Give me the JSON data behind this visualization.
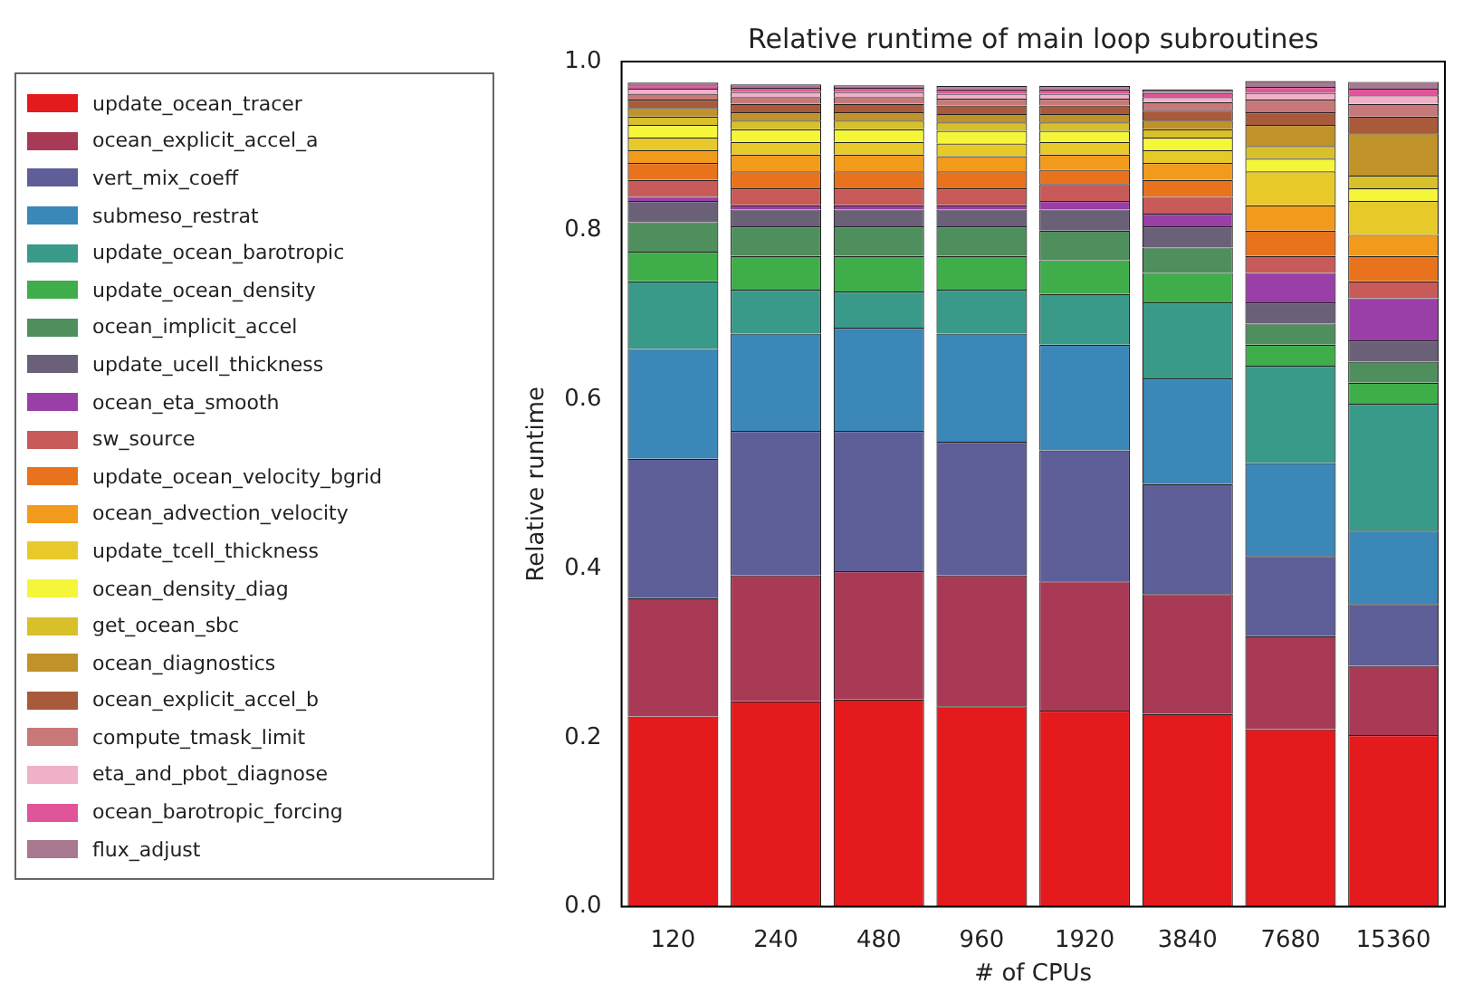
{
  "chart_data": {
    "type": "bar",
    "title": "Relative runtime of main loop subroutines",
    "xlabel": "# of CPUs",
    "ylabel": "Relative runtime",
    "categories": [
      "120",
      "240",
      "480",
      "960",
      "1920",
      "3840",
      "7680",
      "15360"
    ],
    "stacked": true,
    "ylim": [
      0,
      1
    ],
    "yticks": [
      {
        "value": 0,
        "label": "0.0"
      },
      0.2,
      0.4,
      0.6,
      0.8,
      {
        "value": 1,
        "label": "1.0"
      }
    ],
    "grid": false,
    "legend": "left",
    "series": [
      {
        "name": "update_ocean_tracer",
        "color": "#e41a1c",
        "values": [
          0.225,
          0.243,
          0.245,
          0.237,
          0.232,
          0.228,
          0.21,
          0.203
        ]
      },
      {
        "name": "ocean_explicit_accel_a",
        "color": "#a83a55",
        "values": [
          0.14,
          0.149,
          0.152,
          0.155,
          0.153,
          0.142,
          0.11,
          0.082
        ]
      },
      {
        "name": "vert_mix_coeff",
        "color": "#5e5e99",
        "values": [
          0.165,
          0.171,
          0.166,
          0.158,
          0.155,
          0.13,
          0.095,
          0.073
        ]
      },
      {
        "name": "submeso_restrat",
        "color": "#3a87b8",
        "values": [
          0.13,
          0.115,
          0.122,
          0.128,
          0.125,
          0.125,
          0.11,
          0.087
        ]
      },
      {
        "name": "update_ocean_barotropic",
        "color": "#3a9a8a",
        "values": [
          0.08,
          0.052,
          0.043,
          0.052,
          0.06,
          0.09,
          0.115,
          0.15
        ]
      },
      {
        "name": "update_ocean_density",
        "color": "#3fae4a",
        "values": [
          0.035,
          0.04,
          0.042,
          0.04,
          0.04,
          0.035,
          0.025,
          0.025
        ]
      },
      {
        "name": "ocean_implicit_accel",
        "color": "#4f8f5e",
        "values": [
          0.035,
          0.035,
          0.035,
          0.035,
          0.035,
          0.03,
          0.025,
          0.025
        ]
      },
      {
        "name": "update_ucell_thickness",
        "color": "#6a6078",
        "values": [
          0.025,
          0.02,
          0.02,
          0.02,
          0.025,
          0.025,
          0.025,
          0.025
        ]
      },
      {
        "name": "ocean_eta_smooth",
        "color": "#9a3fa8",
        "values": [
          0.005,
          0.005,
          0.005,
          0.005,
          0.01,
          0.015,
          0.035,
          0.05
        ]
      },
      {
        "name": "sw_source",
        "color": "#c85a5a",
        "values": [
          0.02,
          0.02,
          0.02,
          0.02,
          0.02,
          0.02,
          0.02,
          0.02
        ]
      },
      {
        "name": "update_ocean_velocity_bgrid",
        "color": "#e8731c",
        "values": [
          0.02,
          0.02,
          0.02,
          0.02,
          0.017,
          0.02,
          0.03,
          0.03
        ]
      },
      {
        "name": "ocean_advection_velocity",
        "color": "#f29a1c",
        "values": [
          0.015,
          0.02,
          0.02,
          0.018,
          0.018,
          0.02,
          0.03,
          0.025
        ]
      },
      {
        "name": "update_tcell_thickness",
        "color": "#e8c92a",
        "values": [
          0.015,
          0.015,
          0.015,
          0.015,
          0.015,
          0.015,
          0.04,
          0.04
        ]
      },
      {
        "name": "ocean_density_diag",
        "color": "#f5f53a",
        "values": [
          0.015,
          0.015,
          0.015,
          0.015,
          0.013,
          0.015,
          0.015,
          0.015
        ]
      },
      {
        "name": "get_ocean_sbc",
        "color": "#d8c02a",
        "values": [
          0.01,
          0.01,
          0.01,
          0.01,
          0.01,
          0.01,
          0.015,
          0.015
        ]
      },
      {
        "name": "ocean_diagnostics",
        "color": "#c0922a",
        "values": [
          0.01,
          0.01,
          0.01,
          0.01,
          0.01,
          0.01,
          0.025,
          0.05
        ]
      },
      {
        "name": "ocean_explicit_accel_b",
        "color": "#a85a3a",
        "values": [
          0.01,
          0.01,
          0.01,
          0.01,
          0.01,
          0.012,
          0.015,
          0.02
        ]
      },
      {
        "name": "compute_tmask_limit",
        "color": "#c87878",
        "values": [
          0.007,
          0.008,
          0.008,
          0.008,
          0.008,
          0.01,
          0.015,
          0.015
        ]
      },
      {
        "name": "eta_and_pbot_diagnose",
        "color": "#f0b0c8",
        "values": [
          0.006,
          0.006,
          0.006,
          0.006,
          0.006,
          0.006,
          0.008,
          0.01
        ]
      },
      {
        "name": "ocean_barotropic_forcing",
        "color": "#e0559a",
        "values": [
          0.004,
          0.005,
          0.005,
          0.005,
          0.005,
          0.005,
          0.007,
          0.008
        ]
      },
      {
        "name": "flux_adjust",
        "color": "#a87890",
        "values": [
          0.003,
          0.004,
          0.003,
          0.004,
          0.004,
          0.004,
          0.007,
          0.008
        ]
      }
    ]
  }
}
